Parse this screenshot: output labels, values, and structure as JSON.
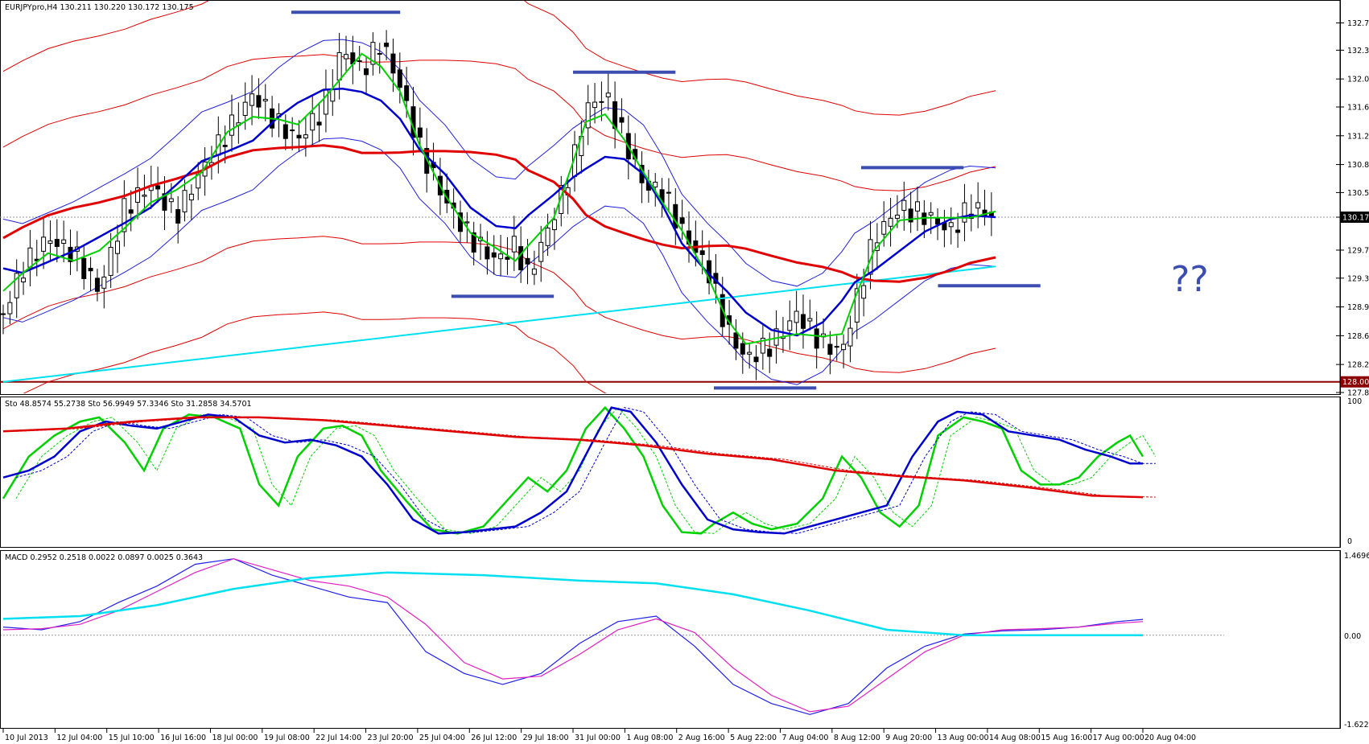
{
  "chart_data": [
    {
      "type": "candlestick",
      "panel": "price",
      "title": "EURJPYpro,H4  130.211 130.220 130.172 130.175",
      "symbol": "EURJPYpro",
      "timeframe": "H4",
      "ohlc_header": [
        130.211,
        130.22,
        130.172,
        130.175
      ],
      "ylim": [
        127.86,
        133.0
      ],
      "y_ticks": [
        132.74,
        132.38,
        132.0,
        131.63,
        131.25,
        130.87,
        130.5,
        130.175,
        129.74,
        129.37,
        128.99,
        128.61,
        128.23,
        127.86
      ],
      "y_tick_labels": [
        "132.740",
        "132.380",
        "132.000",
        "131.630",
        "131.250",
        "130.870",
        "130.500",
        "130.175",
        "129.740",
        "129.370",
        "128.990",
        "128.610",
        "128.230",
        "127.860"
      ],
      "current_price_label": "130.175",
      "support_label": "128.001",
      "support_level": 128.001,
      "annotation_text": "??",
      "x_labels": [
        "10 Jul 2013",
        "12 Jul 04:00",
        "15 Jul 10:00",
        "16 Jul 16:00",
        "18 Jul 00:00",
        "19 Jul 08:00",
        "22 Jul 14:00",
        "23 Jul 20:00",
        "25 Jul 04:00",
        "26 Jul 12:00",
        "29 Jul 18:00",
        "31 Jul 00:00",
        "1 Aug 08:00",
        "2 Aug 16:00",
        "5 Aug 22:00",
        "7 Aug 04:00",
        "8 Aug 12:00",
        "9 Aug 20:00",
        "13 Aug 00:00",
        "14 Aug 08:00",
        "15 Aug 16:00",
        "17 Aug 00:00",
        "20 Aug 04:00"
      ],
      "close_path": [
        [
          0,
          128.9
        ],
        [
          6,
          129.5
        ],
        [
          14,
          129.9
        ],
        [
          22,
          129.7
        ],
        [
          30,
          129.2
        ],
        [
          38,
          130.3
        ],
        [
          46,
          130.6
        ],
        [
          54,
          130.2
        ],
        [
          62,
          130.8
        ],
        [
          70,
          131.3
        ],
        [
          78,
          131.8
        ],
        [
          86,
          131.4
        ],
        [
          92,
          131.2
        ],
        [
          100,
          131.6
        ],
        [
          106,
          132.4
        ],
        [
          112,
          132.1
        ],
        [
          118,
          132.5
        ],
        [
          124,
          131.9
        ],
        [
          130,
          131.1
        ],
        [
          138,
          130.4
        ],
        [
          146,
          129.9
        ],
        [
          154,
          129.6
        ],
        [
          160,
          129.8
        ],
        [
          164,
          129.4
        ],
        [
          172,
          130.2
        ],
        [
          178,
          130.9
        ],
        [
          182,
          131.6
        ],
        [
          188,
          131.8
        ],
        [
          194,
          131.2
        ],
        [
          200,
          130.6
        ],
        [
          206,
          130.5
        ],
        [
          212,
          130.0
        ],
        [
          220,
          129.5
        ],
        [
          226,
          128.7
        ],
        [
          232,
          128.3
        ],
        [
          240,
          128.5
        ],
        [
          248,
          128.9
        ],
        [
          256,
          128.5
        ],
        [
          262,
          128.4
        ],
        [
          266,
          129.0
        ],
        [
          272,
          129.9
        ],
        [
          280,
          130.3
        ],
        [
          288,
          130.2
        ],
        [
          296,
          130.0
        ],
        [
          302,
          130.3
        ],
        [
          310,
          130.2
        ]
      ],
      "series": [
        {
          "name": "",
          "color": "#00d000"
        },
        {
          "name": "",
          "color": "#0000cc"
        },
        {
          "name": "",
          "color": "#e00000"
        },
        {
          "name": "",
          "color": "#00e0f0"
        }
      ],
      "marked_levels": [
        {
          "y": 132.88
        },
        {
          "y": 132.09
        },
        {
          "y": 129.13
        },
        {
          "y": 130.83
        },
        {
          "y": 129.27
        },
        {
          "y": 127.92
        }
      ]
    },
    {
      "type": "line",
      "panel": "stochastic",
      "header": "Sto 48.8574 55.2738   Sto 56.9949 57.3346   Sto 31.2858 34.5701",
      "ylim": [
        0,
        100
      ],
      "y_tick_labels": [
        "100",
        "0"
      ],
      "series": [
        {
          "name": "Sto 48.8574 55.2738",
          "color": "#00d000",
          "values": [
            [
              0,
              30
            ],
            [
              8,
              60
            ],
            [
              16,
              75
            ],
            [
              24,
              85
            ],
            [
              30,
              88
            ],
            [
              38,
              70
            ],
            [
              44,
              50
            ],
            [
              50,
              80
            ],
            [
              58,
              90
            ],
            [
              66,
              88
            ],
            [
              74,
              80
            ],
            [
              80,
              40
            ],
            [
              86,
              25
            ],
            [
              92,
              60
            ],
            [
              100,
              80
            ],
            [
              106,
              82
            ],
            [
              112,
              75
            ],
            [
              118,
              50
            ],
            [
              126,
              28
            ],
            [
              134,
              8
            ],
            [
              142,
              5
            ],
            [
              150,
              10
            ],
            [
              158,
              30
            ],
            [
              164,
              45
            ],
            [
              170,
              35
            ],
            [
              176,
              50
            ],
            [
              182,
              80
            ],
            [
              188,
              95
            ],
            [
              194,
              80
            ],
            [
              200,
              60
            ],
            [
              206,
              25
            ],
            [
              212,
              6
            ],
            [
              218,
              5
            ],
            [
              222,
              12
            ],
            [
              228,
              20
            ],
            [
              234,
              12
            ],
            [
              240,
              8
            ],
            [
              248,
              12
            ],
            [
              256,
              30
            ],
            [
              262,
              60
            ],
            [
              268,
              45
            ],
            [
              274,
              20
            ],
            [
              280,
              10
            ],
            [
              286,
              25
            ],
            [
              292,
              75
            ],
            [
              300,
              88
            ],
            [
              306,
              85
            ],
            [
              312,
              80
            ],
            [
              318,
              50
            ],
            [
              324,
              40
            ],
            [
              330,
              40
            ],
            [
              336,
              45
            ],
            [
              342,
              60
            ],
            [
              348,
              70
            ],
            [
              352,
              75
            ],
            [
              356,
              60
            ]
          ]
        },
        {
          "name": "Sto 56.9949 57.3346",
          "color": "#0000cc",
          "values": [
            [
              0,
              45
            ],
            [
              8,
              50
            ],
            [
              16,
              60
            ],
            [
              24,
              78
            ],
            [
              32,
              85
            ],
            [
              40,
              82
            ],
            [
              48,
              80
            ],
            [
              56,
              85
            ],
            [
              64,
              90
            ],
            [
              72,
              88
            ],
            [
              80,
              75
            ],
            [
              88,
              70
            ],
            [
              96,
              72
            ],
            [
              104,
              68
            ],
            [
              112,
              60
            ],
            [
              120,
              40
            ],
            [
              128,
              15
            ],
            [
              136,
              5
            ],
            [
              144,
              6
            ],
            [
              152,
              8
            ],
            [
              160,
              10
            ],
            [
              168,
              20
            ],
            [
              176,
              35
            ],
            [
              184,
              70
            ],
            [
              190,
              95
            ],
            [
              196,
              92
            ],
            [
              204,
              70
            ],
            [
              212,
              40
            ],
            [
              220,
              15
            ],
            [
              228,
              8
            ],
            [
              236,
              6
            ],
            [
              244,
              5
            ],
            [
              252,
              10
            ],
            [
              260,
              15
            ],
            [
              268,
              20
            ],
            [
              276,
              25
            ],
            [
              284,
              60
            ],
            [
              292,
              85
            ],
            [
              298,
              92
            ],
            [
              306,
              90
            ],
            [
              314,
              78
            ],
            [
              322,
              75
            ],
            [
              330,
              72
            ],
            [
              338,
              65
            ],
            [
              346,
              60
            ],
            [
              352,
              55
            ],
            [
              356,
              55
            ]
          ]
        },
        {
          "name": "Sto 31.2858 34.5701",
          "color": "#e00000",
          "values": [
            [
              0,
              78
            ],
            [
              20,
              80
            ],
            [
              40,
              85
            ],
            [
              60,
              88
            ],
            [
              80,
              88
            ],
            [
              100,
              86
            ],
            [
              120,
              82
            ],
            [
              140,
              78
            ],
            [
              160,
              74
            ],
            [
              180,
              72
            ],
            [
              200,
              68
            ],
            [
              220,
              62
            ],
            [
              240,
              58
            ],
            [
              260,
              50
            ],
            [
              280,
              46
            ],
            [
              300,
              43
            ],
            [
              320,
              38
            ],
            [
              340,
              32
            ],
            [
              356,
              31
            ]
          ]
        }
      ]
    },
    {
      "type": "line",
      "panel": "macd",
      "header": "MACD 0.2952 0.2518 0.0022 0.0897 0.0025 0.3643",
      "ylim": [
        -1.6228,
        1.4696
      ],
      "y_tick_labels": [
        "1.4696",
        "0.00",
        "-1.6228"
      ],
      "series": [
        {
          "name": "",
          "color": "#2020ee",
          "values": [
            [
              0,
              0.15
            ],
            [
              12,
              0.1
            ],
            [
              24,
              0.25
            ],
            [
              36,
              0.6
            ],
            [
              48,
              0.9
            ],
            [
              60,
              1.3
            ],
            [
              72,
              1.4
            ],
            [
              84,
              1.1
            ],
            [
              96,
              0.9
            ],
            [
              108,
              0.7
            ],
            [
              120,
              0.6
            ],
            [
              132,
              -0.3
            ],
            [
              144,
              -0.7
            ],
            [
              156,
              -0.9
            ],
            [
              168,
              -0.7
            ],
            [
              180,
              -0.15
            ],
            [
              192,
              0.25
            ],
            [
              204,
              0.35
            ],
            [
              216,
              -0.2
            ],
            [
              228,
              -0.9
            ],
            [
              240,
              -1.25
            ],
            [
              252,
              -1.45
            ],
            [
              264,
              -1.25
            ],
            [
              276,
              -0.6
            ],
            [
              288,
              -0.2
            ],
            [
              300,
              0.02
            ],
            [
              312,
              0.08
            ],
            [
              324,
              0.1
            ],
            [
              336,
              0.15
            ],
            [
              348,
              0.25
            ],
            [
              356,
              0.29
            ]
          ]
        },
        {
          "name": "",
          "color": "#e020c0",
          "values": [
            [
              0,
              0.1
            ],
            [
              12,
              0.12
            ],
            [
              24,
              0.2
            ],
            [
              36,
              0.45
            ],
            [
              48,
              0.8
            ],
            [
              60,
              1.15
            ],
            [
              72,
              1.4
            ],
            [
              84,
              1.2
            ],
            [
              96,
              1.0
            ],
            [
              108,
              0.9
            ],
            [
              120,
              0.7
            ],
            [
              132,
              0.2
            ],
            [
              144,
              -0.5
            ],
            [
              156,
              -0.8
            ],
            [
              168,
              -0.75
            ],
            [
              180,
              -0.35
            ],
            [
              192,
              0.1
            ],
            [
              204,
              0.3
            ],
            [
              216,
              0.05
            ],
            [
              228,
              -0.6
            ],
            [
              240,
              -1.1
            ],
            [
              252,
              -1.4
            ],
            [
              264,
              -1.3
            ],
            [
              276,
              -0.8
            ],
            [
              288,
              -0.3
            ],
            [
              300,
              0.0
            ],
            [
              312,
              0.1
            ],
            [
              324,
              0.12
            ],
            [
              336,
              0.15
            ],
            [
              348,
              0.22
            ],
            [
              356,
              0.25
            ]
          ]
        },
        {
          "name": "",
          "color": "#00e0f0",
          "values": [
            [
              0,
              0.3
            ],
            [
              24,
              0.35
            ],
            [
              48,
              0.55
            ],
            [
              72,
              0.85
            ],
            [
              96,
              1.05
            ],
            [
              120,
              1.15
            ],
            [
              150,
              1.1
            ],
            [
              180,
              1.0
            ],
            [
              204,
              0.95
            ],
            [
              228,
              0.75
            ],
            [
              252,
              0.45
            ],
            [
              276,
              0.1
            ],
            [
              300,
              0.0
            ],
            [
              330,
              0.0
            ],
            [
              356,
              0.0
            ]
          ]
        }
      ]
    }
  ]
}
